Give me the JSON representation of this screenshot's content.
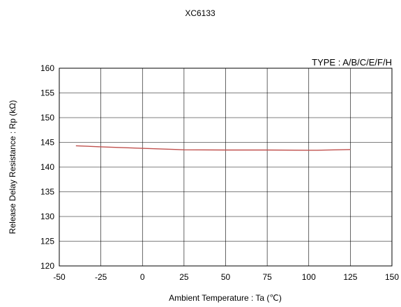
{
  "chart_data": {
    "type": "line",
    "title": "XC6133",
    "annotation": "TYPE : A/B/C/E/F/H",
    "xlabel": "Ambient Temperature : Ta (℃)",
    "ylabel": "Release Delay Resistance : Rp (kΩ)",
    "xlim": [
      -50,
      150
    ],
    "ylim": [
      120,
      160
    ],
    "xticks": [
      -50,
      -25,
      0,
      25,
      50,
      75,
      100,
      125,
      150
    ],
    "yticks": [
      120,
      125,
      130,
      135,
      140,
      145,
      150,
      155,
      160
    ],
    "grid": true,
    "series": [
      {
        "color": "#c0504d",
        "x": [
          -40,
          -25,
          0,
          25,
          50,
          75,
          100,
          105,
          125
        ],
        "y": [
          144.3,
          144.1,
          143.8,
          143.5,
          143.45,
          143.45,
          143.4,
          143.4,
          143.55
        ]
      }
    ]
  }
}
